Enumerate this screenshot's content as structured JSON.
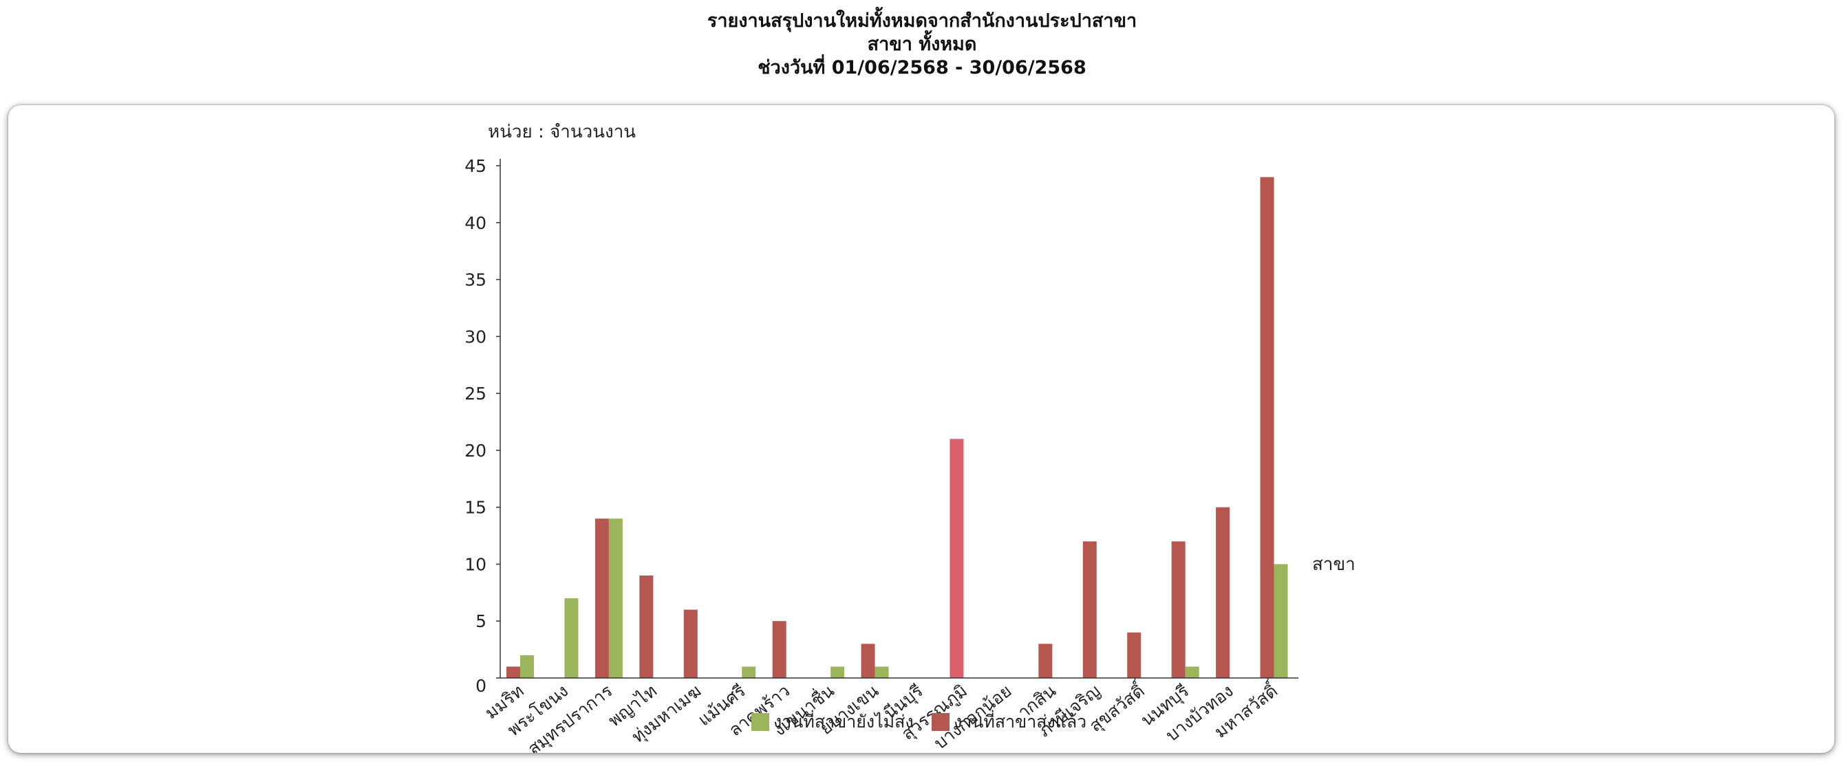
{
  "header": {
    "line1": "รายงานสรุปงานใหม่ทั้งหมดจากสำนักงานประปาสาขา",
    "line2": "สาขา ทั้งหมด",
    "line3": "ช่วงวันที่ 01/06/2568 - 30/06/2568"
  },
  "chart_data": {
    "type": "bar",
    "title": "",
    "ylabel": "หน่วย : จำนวนงาน",
    "xlabel": "สาขา",
    "ylim": [
      0,
      45
    ],
    "yticks": [
      0,
      5,
      10,
      15,
      20,
      25,
      30,
      35,
      40,
      45
    ],
    "grid": false,
    "legend_position": "bottom",
    "categories": [
      "สมุทรปราการ",
      "พระโขนง",
      "สมุทรปราการ",
      "พญาไท",
      "ทุ่งมหาเมฆ",
      "แม้นศรี",
      "ลาดพร้าว",
      "บางเขน",
      "บางบัวทอง",
      "มีนบุรี",
      "สุวรรณภูมิ",
      "บางกอกน้อย",
      "ตากสิน",
      "ภาษีเจริญ",
      "สุขสวัสดิ์",
      "นนทบุรี",
      "บางบัวทอง",
      "มหาสวัสดิ์"
    ],
    "tick_labels": [
      "มมริท",
      "พระโขนง",
      "สมุทรปราการ",
      "พญาไท",
      "ทุ่งมหาเมฆ",
      "แม้นศรี",
      "ลาดพร้าว",
      "งเขนาชื่น",
      "ยบางเขน",
      "นีนบุรี",
      "สุวรรณภูมิ",
      "บางกอกน้อย",
      "ากสิน",
      "ภาษีเจริญ",
      "สุขสวัสดิ์",
      "นนทบุรี",
      "บางบัวทอง",
      "มหาสวัสดิ์"
    ],
    "series": [
      {
        "name": "งานที่สาขาส่งแล้ว",
        "color": "#b5574f",
        "values": [
          1,
          0,
          14,
          9,
          6,
          0,
          5,
          0,
          3,
          0,
          21,
          0,
          3,
          12,
          4,
          12,
          15,
          44
        ]
      },
      {
        "name": "งานที่สาขายังไม่ส่ง",
        "color": "#9bb55c",
        "values": [
          2,
          7,
          14,
          0,
          0,
          1,
          0,
          1,
          1,
          0,
          0,
          0,
          0,
          0,
          0,
          1,
          0,
          10
        ]
      }
    ],
    "highlight_color": "#d9606a",
    "legend": [
      "งานที่สาขายังไม่ส่ง",
      "งานที่สาขาส่งแล้ว"
    ]
  }
}
